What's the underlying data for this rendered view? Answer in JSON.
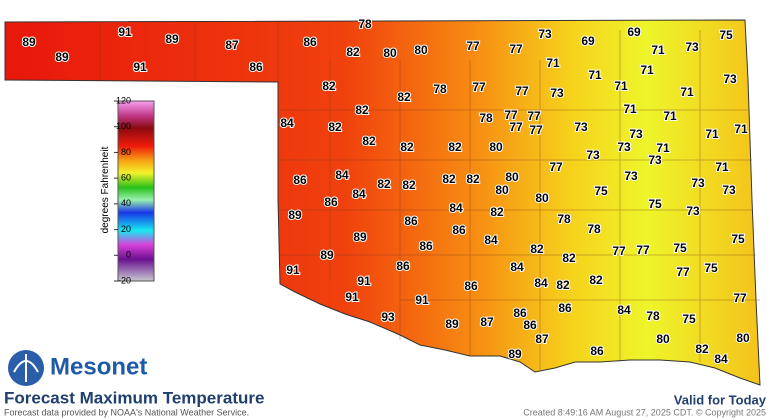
{
  "brand": "Mesonet",
  "title": "Forecast Maximum Temperature",
  "source": "Forecast data provided by NOAA's National Weather Service.",
  "valid": "Valid for Today",
  "created": "Created 8:49:16 AM August 27, 2025 CDT. © Copyright 2025",
  "legend": {
    "label": "degrees Fahrenheit",
    "ylim": [
      -20,
      120
    ],
    "yticks": [
      120,
      100,
      80,
      60,
      40,
      20,
      0,
      -20
    ]
  },
  "stations": [
    89,
    89,
    91,
    89,
    91,
    87,
    86,
    78,
    86,
    82,
    80,
    80,
    77,
    77,
    73,
    69,
    69,
    71,
    73,
    75,
    71,
    71,
    71,
    73,
    82,
    82,
    78,
    77,
    77,
    73,
    71,
    71,
    82,
    84,
    82,
    78,
    77,
    77,
    77,
    77,
    71,
    71,
    73,
    73,
    71,
    71,
    82,
    82,
    82,
    80,
    73,
    73,
    71,
    73,
    71,
    77,
    86,
    84,
    82,
    82,
    82,
    82,
    80,
    80,
    73,
    73,
    73,
    84,
    86,
    75,
    80,
    89,
    86,
    84,
    82,
    75,
    73,
    78,
    89,
    86,
    84,
    78,
    86,
    77,
    77,
    75,
    75,
    89,
    82,
    82,
    91,
    86,
    84,
    77,
    75,
    91,
    84,
    82,
    82,
    86,
    91,
    91,
    77,
    84,
    78,
    75,
    93,
    89,
    87,
    86,
    86,
    86,
    87,
    80,
    80,
    89,
    86,
    82,
    84
  ]
}
